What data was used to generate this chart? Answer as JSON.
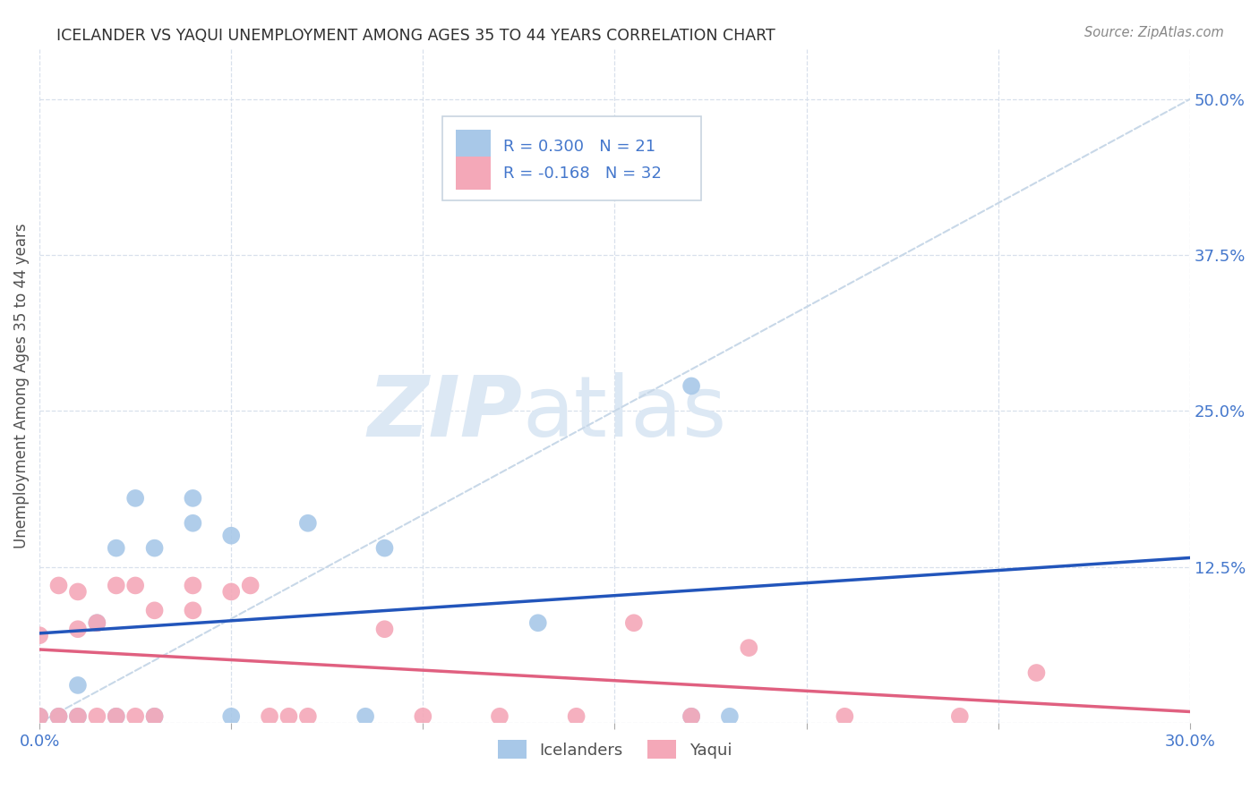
{
  "title": "ICELANDER VS YAQUI UNEMPLOYMENT AMONG AGES 35 TO 44 YEARS CORRELATION CHART",
  "source": "Source: ZipAtlas.com",
  "ylabel": "Unemployment Among Ages 35 to 44 years",
  "xlim": [
    0.0,
    0.3
  ],
  "ylim": [
    0.0,
    0.54
  ],
  "xticks": [
    0.0,
    0.05,
    0.1,
    0.15,
    0.2,
    0.25,
    0.3
  ],
  "yticks": [
    0.0,
    0.125,
    0.25,
    0.375,
    0.5
  ],
  "yticklabels": [
    "",
    "12.5%",
    "25.0%",
    "37.5%",
    "50.0%"
  ],
  "icelander_color": "#a8c8e8",
  "yaqui_color": "#f4a8b8",
  "icelander_line_color": "#2255bb",
  "yaqui_line_color": "#e06080",
  "diag_line_color": "#c8d8e8",
  "R_icelander": 0.3,
  "N_icelander": 21,
  "R_yaqui": -0.168,
  "N_yaqui": 32,
  "icelander_x": [
    0.0,
    0.005,
    0.01,
    0.01,
    0.015,
    0.02,
    0.02,
    0.025,
    0.03,
    0.03,
    0.04,
    0.04,
    0.05,
    0.05,
    0.07,
    0.085,
    0.09,
    0.13,
    0.17,
    0.18,
    0.17
  ],
  "icelander_y": [
    0.005,
    0.005,
    0.005,
    0.03,
    0.08,
    0.005,
    0.14,
    0.18,
    0.005,
    0.14,
    0.16,
    0.18,
    0.005,
    0.15,
    0.16,
    0.005,
    0.14,
    0.08,
    0.005,
    0.005,
    0.27
  ],
  "yaqui_x": [
    0.0,
    0.0,
    0.005,
    0.005,
    0.01,
    0.01,
    0.01,
    0.015,
    0.015,
    0.02,
    0.02,
    0.025,
    0.025,
    0.03,
    0.03,
    0.04,
    0.04,
    0.05,
    0.055,
    0.06,
    0.065,
    0.07,
    0.09,
    0.1,
    0.12,
    0.14,
    0.155,
    0.17,
    0.185,
    0.21,
    0.24,
    0.26
  ],
  "yaqui_y": [
    0.005,
    0.07,
    0.005,
    0.11,
    0.005,
    0.075,
    0.105,
    0.005,
    0.08,
    0.005,
    0.11,
    0.005,
    0.11,
    0.005,
    0.09,
    0.09,
    0.11,
    0.105,
    0.11,
    0.005,
    0.005,
    0.005,
    0.075,
    0.005,
    0.005,
    0.005,
    0.08,
    0.005,
    0.06,
    0.005,
    0.005,
    0.04
  ],
  "watermark_zip": "ZIP",
  "watermark_atlas": "atlas",
  "background_color": "#ffffff",
  "grid_color": "#d8e0ec",
  "title_color": "#303030",
  "tick_color": "#4477cc",
  "label_color": "#505050"
}
